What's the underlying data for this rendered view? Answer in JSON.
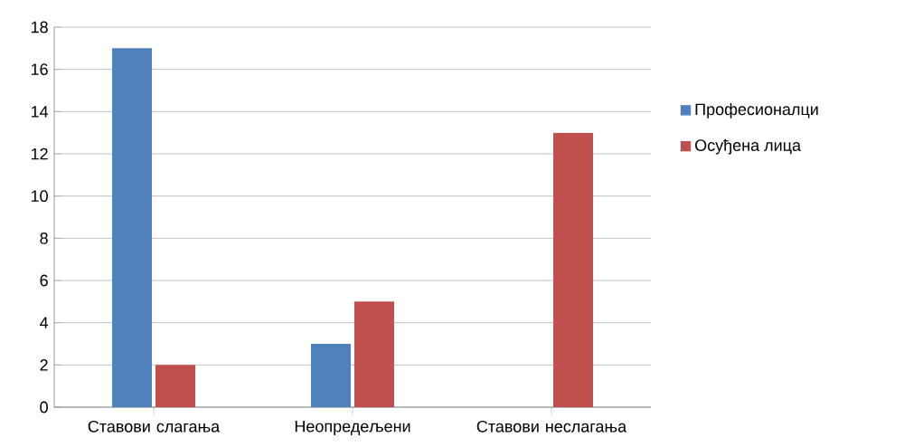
{
  "chart_data": {
    "type": "bar",
    "categories": [
      "Ставови слагања",
      "Неопредељени",
      "Ставови неслагања"
    ],
    "series": [
      {
        "name": "Професионалци",
        "color": "#4f81bd",
        "values": [
          17,
          3,
          0
        ]
      },
      {
        "name": "Осуђена лица",
        "color": "#c0504d",
        "values": [
          2,
          5,
          13
        ]
      }
    ],
    "ylim": [
      0,
      18
    ],
    "yticks": [
      0,
      2,
      4,
      6,
      8,
      10,
      12,
      14,
      16,
      18
    ],
    "grid": "y",
    "legend": "right"
  }
}
